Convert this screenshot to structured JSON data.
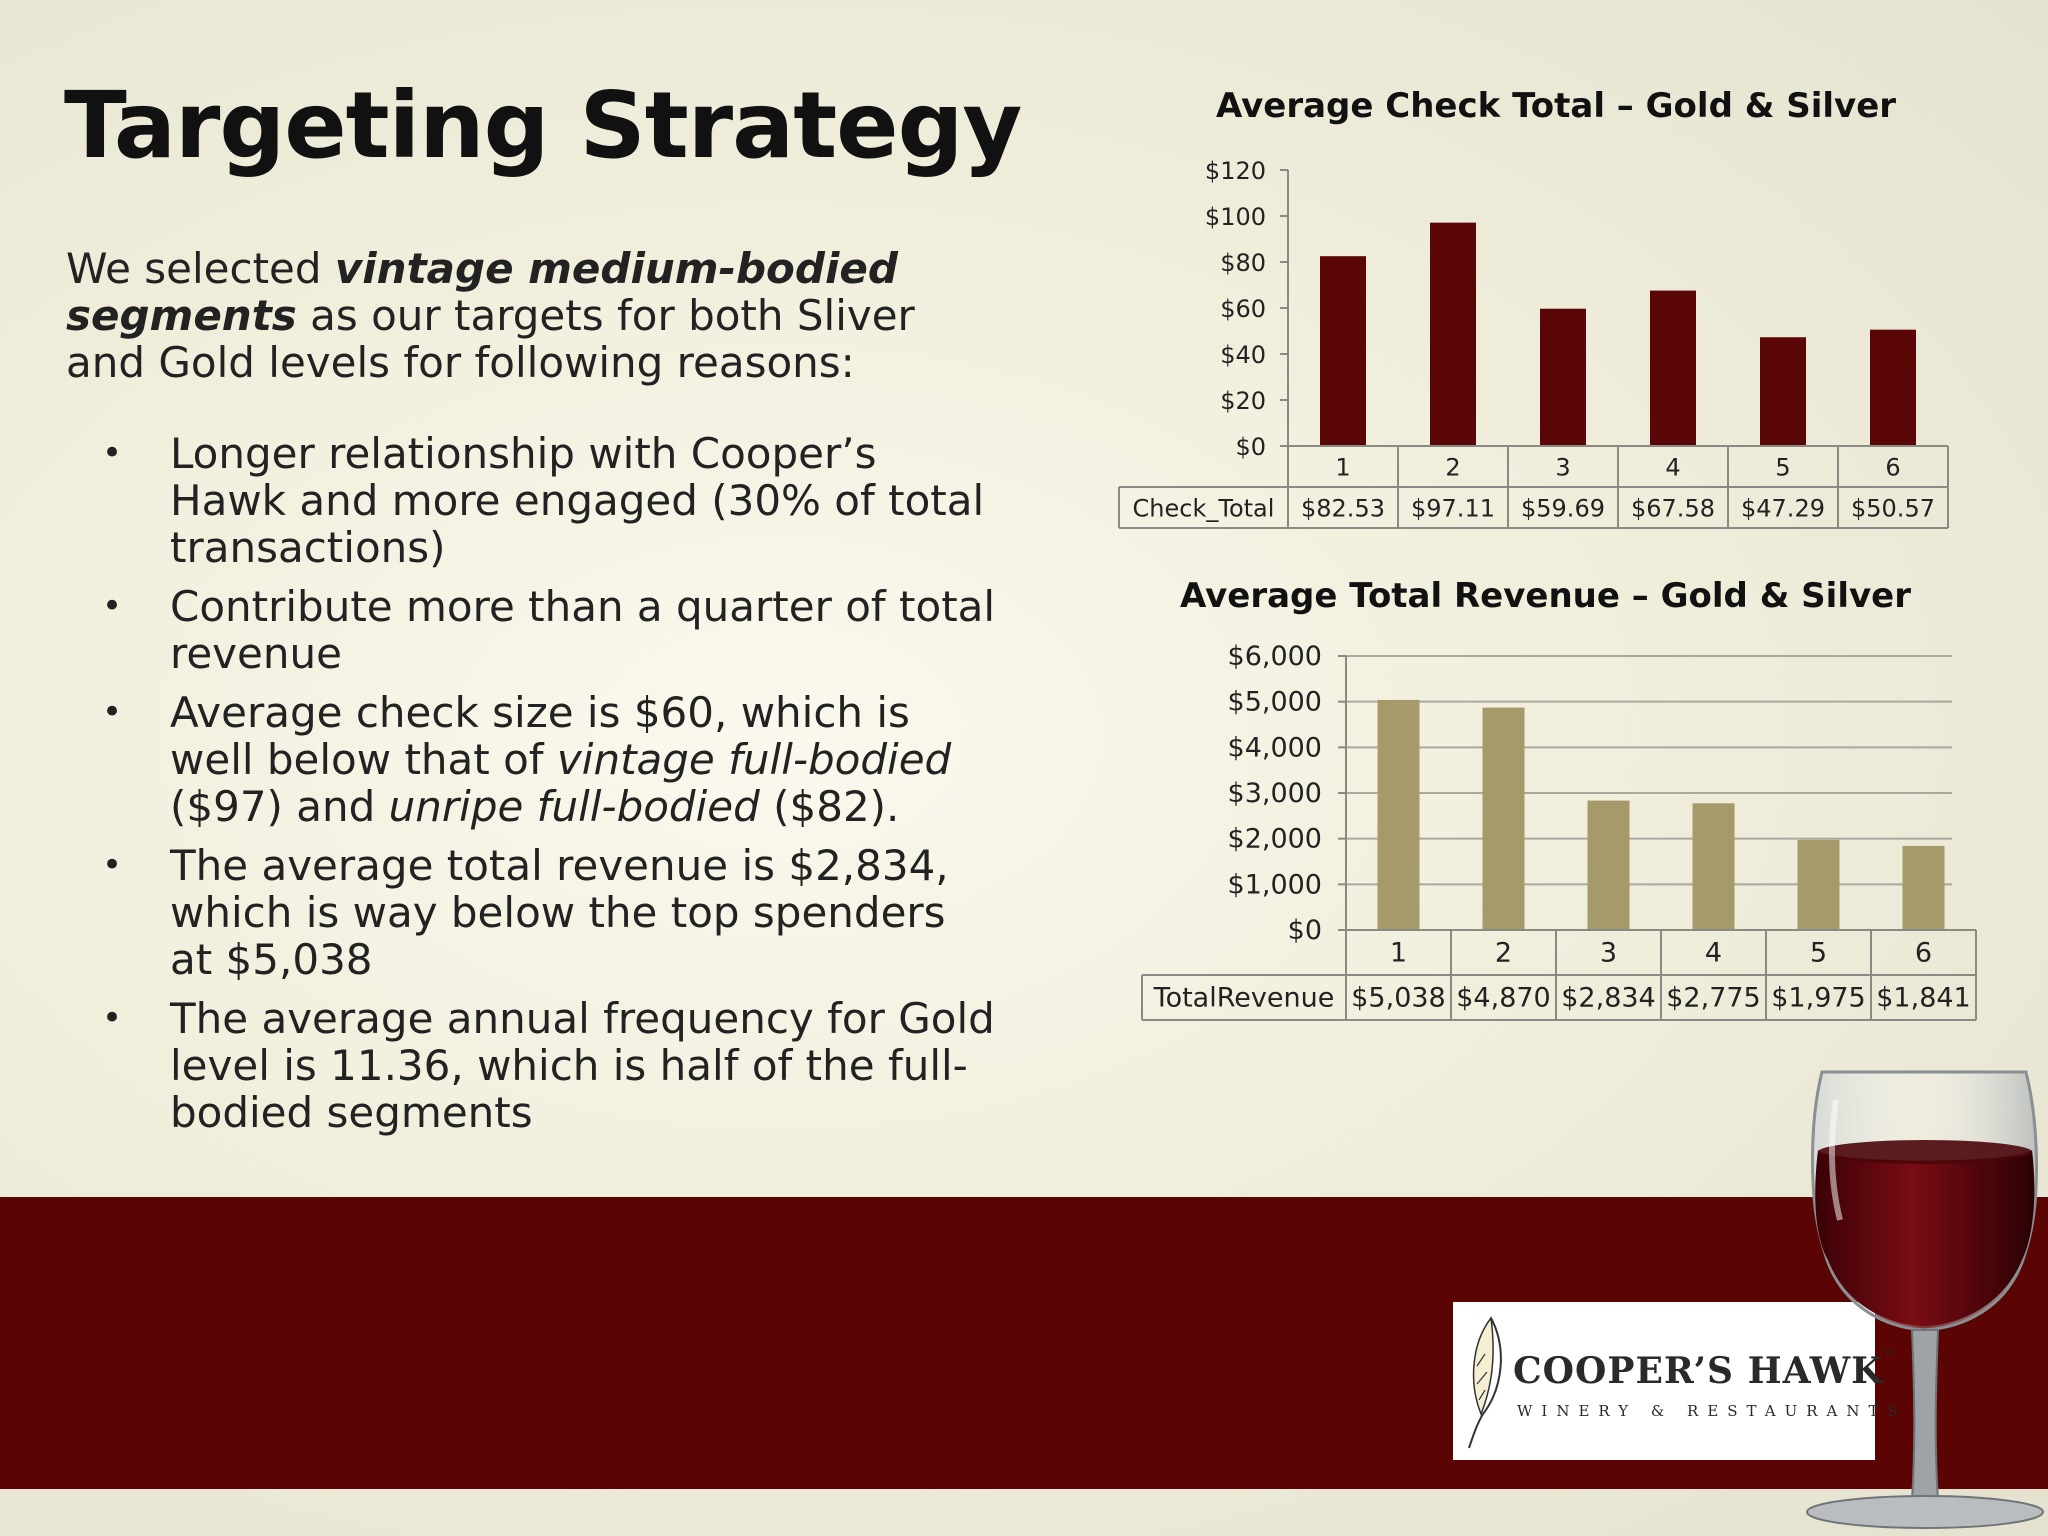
{
  "slide": {
    "title": "Targeting Strategy",
    "intro": {
      "part1": "We selected ",
      "emphasis": "vintage medium-bodied segments",
      "part2": " as our targets for both Sliver and Gold levels for following reasons:"
    },
    "bullets": [
      {
        "text": "Longer relationship with Cooper’s Hawk and more engaged (30% of total transactions)"
      },
      {
        "text": "Contribute more than a quarter of total revenue"
      },
      {
        "pre": "Average check size is $60, which is well below that of ",
        "em1": "vintage full-bodied",
        "mid": " ($97) and ",
        "em2": "unripe full-bodied",
        "post": " ($82)."
      },
      {
        "text": "The average total revenue is $2,834, which is way below the top spenders at $5,038"
      },
      {
        "text": "The average annual frequency for Gold level is 11.36, which is half of the full-bodied segments"
      }
    ]
  },
  "logo": {
    "name": "COOPER’S HAWK",
    "tm": "™",
    "subtitle": "WINERY & RESTAURANTS"
  },
  "chart_data": [
    {
      "type": "bar",
      "title": "Average Check Total – Gold & Silver",
      "categories": [
        "1",
        "2",
        "3",
        "4",
        "5",
        "6"
      ],
      "series": [
        {
          "name": "Check_Total",
          "values": [
            82.53,
            97.11,
            59.69,
            67.58,
            47.29,
            50.57
          ]
        }
      ],
      "table_values": [
        "$82.53",
        "$97.11",
        "$59.69",
        "$67.58",
        "$47.29",
        "$50.57"
      ],
      "yticks": [
        "$0",
        "$20",
        "$40",
        "$60",
        "$80",
        "$100",
        "$120"
      ],
      "ylim": [
        0,
        120
      ],
      "grid": false,
      "color": "#5a0606"
    },
    {
      "type": "bar",
      "title": "Average Total Revenue – Gold & Silver",
      "categories": [
        "1",
        "2",
        "3",
        "4",
        "5",
        "6"
      ],
      "series": [
        {
          "name": "TotalRevenue",
          "values": [
            5038,
            4870,
            2834,
            2775,
            1975,
            1841
          ]
        }
      ],
      "table_values": [
        "$5,038",
        "$4,870",
        "$2,834",
        "$2,775",
        "$1,975",
        "$1,841"
      ],
      "yticks": [
        "$0",
        "$1,000",
        "$2,000",
        "$3,000",
        "$4,000",
        "$5,000",
        "$6,000"
      ],
      "ylim": [
        0,
        6000
      ],
      "grid": true,
      "color": "#a69a6a"
    }
  ]
}
